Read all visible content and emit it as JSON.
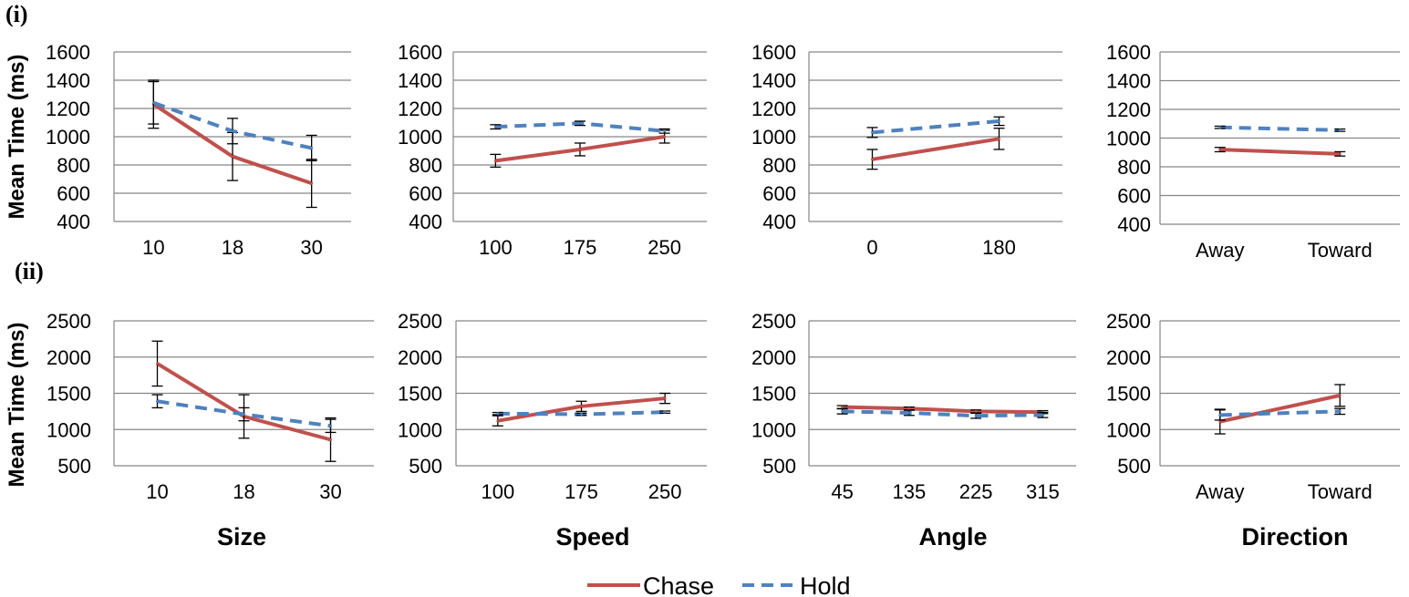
{
  "colors": {
    "chase": "#c0504d",
    "hold": "#4f81bd"
  },
  "legend": {
    "chase": "Chase",
    "hold": "Hold"
  },
  "chart_data": [
    {
      "type": "line",
      "row_label": "(i)",
      "ylabel": "Mean Time (ms)",
      "xlabel": "",
      "ylim": [
        400,
        1600
      ],
      "yticks": [
        400,
        600,
        800,
        1000,
        1200,
        1400,
        1600
      ],
      "grid": true,
      "categories": [
        "10",
        "18",
        "30"
      ],
      "series": [
        {
          "name": "Chase",
          "values": [
            1230,
            860,
            670
          ],
          "err": [
            170,
            170,
            170
          ]
        },
        {
          "name": "Hold",
          "values": [
            1240,
            1040,
            920
          ],
          "err": [
            150,
            90,
            90
          ]
        }
      ]
    },
    {
      "type": "line",
      "row_label": "",
      "ylabel": "",
      "xlabel": "",
      "ylim": [
        400,
        1600
      ],
      "yticks": [
        400,
        600,
        800,
        1000,
        1200,
        1400,
        1600
      ],
      "grid": true,
      "categories": [
        "100",
        "175",
        "250"
      ],
      "series": [
        {
          "name": "Chase",
          "values": [
            830,
            910,
            1000
          ],
          "err": [
            45,
            45,
            45
          ]
        },
        {
          "name": "Hold",
          "values": [
            1070,
            1095,
            1040
          ],
          "err": [
            15,
            15,
            15
          ]
        }
      ]
    },
    {
      "type": "line",
      "row_label": "",
      "ylabel": "",
      "xlabel": "",
      "ylim": [
        400,
        1600
      ],
      "yticks": [
        400,
        600,
        800,
        1000,
        1200,
        1400,
        1600
      ],
      "grid": true,
      "categories": [
        "0",
        "180"
      ],
      "series": [
        {
          "name": "Chase",
          "values": [
            840,
            985
          ],
          "err": [
            70,
            75
          ]
        },
        {
          "name": "Hold",
          "values": [
            1030,
            1110
          ],
          "err": [
            35,
            30
          ]
        }
      ]
    },
    {
      "type": "line",
      "row_label": "",
      "ylabel": "",
      "xlabel": "",
      "ylim": [
        400,
        1600
      ],
      "yticks": [
        400,
        600,
        800,
        1000,
        1200,
        1400,
        1600
      ],
      "grid": true,
      "categories": [
        "Away",
        "Toward"
      ],
      "series": [
        {
          "name": "Chase",
          "values": [
            920,
            890
          ],
          "err": [
            15,
            15
          ]
        },
        {
          "name": "Hold",
          "values": [
            1075,
            1055
          ],
          "err": [
            8,
            8
          ]
        }
      ]
    },
    {
      "type": "line",
      "row_label": "(ii)",
      "ylabel": "Mean Time (ms)",
      "xlabel": "Size",
      "ylim": [
        500,
        2500
      ],
      "yticks": [
        500,
        1000,
        1500,
        2000,
        2500
      ],
      "grid": true,
      "categories": [
        "10",
        "18",
        "30"
      ],
      "series": [
        {
          "name": "Chase",
          "values": [
            1910,
            1180,
            860
          ],
          "err": [
            310,
            300,
            300
          ]
        },
        {
          "name": "Hold",
          "values": [
            1390,
            1210,
            1050
          ],
          "err": [
            90,
            90,
            90
          ]
        }
      ]
    },
    {
      "type": "line",
      "row_label": "",
      "ylabel": "",
      "xlabel": "Speed",
      "ylim": [
        500,
        2500
      ],
      "yticks": [
        500,
        1000,
        1500,
        2000,
        2500
      ],
      "grid": true,
      "categories": [
        "100",
        "175",
        "250"
      ],
      "series": [
        {
          "name": "Chase",
          "values": [
            1120,
            1320,
            1430
          ],
          "err": [
            70,
            70,
            70
          ]
        },
        {
          "name": "Hold",
          "values": [
            1220,
            1210,
            1240
          ],
          "err": [
            15,
            15,
            15
          ]
        }
      ]
    },
    {
      "type": "line",
      "row_label": "",
      "ylabel": "",
      "xlabel": "Angle",
      "ylim": [
        500,
        2500
      ],
      "yticks": [
        500,
        1000,
        1500,
        2000,
        2500
      ],
      "grid": true,
      "categories": [
        "45",
        "135",
        "225",
        "315"
      ],
      "series": [
        {
          "name": "Chase",
          "values": [
            1310,
            1290,
            1250,
            1240
          ],
          "err": [
            20,
            20,
            20,
            20
          ]
        },
        {
          "name": "Hold",
          "values": [
            1250,
            1230,
            1190,
            1200
          ],
          "err": [
            35,
            35,
            35,
            35
          ]
        }
      ]
    },
    {
      "type": "line",
      "row_label": "",
      "ylabel": "",
      "xlabel": "Direction",
      "ylim": [
        500,
        2500
      ],
      "yticks": [
        500,
        1000,
        1500,
        2000,
        2500
      ],
      "grid": true,
      "categories": [
        "Away",
        "Toward"
      ],
      "series": [
        {
          "name": "Chase",
          "values": [
            1110,
            1470
          ],
          "err": [
            170,
            150
          ]
        },
        {
          "name": "Hold",
          "values": [
            1200,
            1250
          ],
          "err": [
            70,
            40
          ]
        }
      ]
    }
  ]
}
